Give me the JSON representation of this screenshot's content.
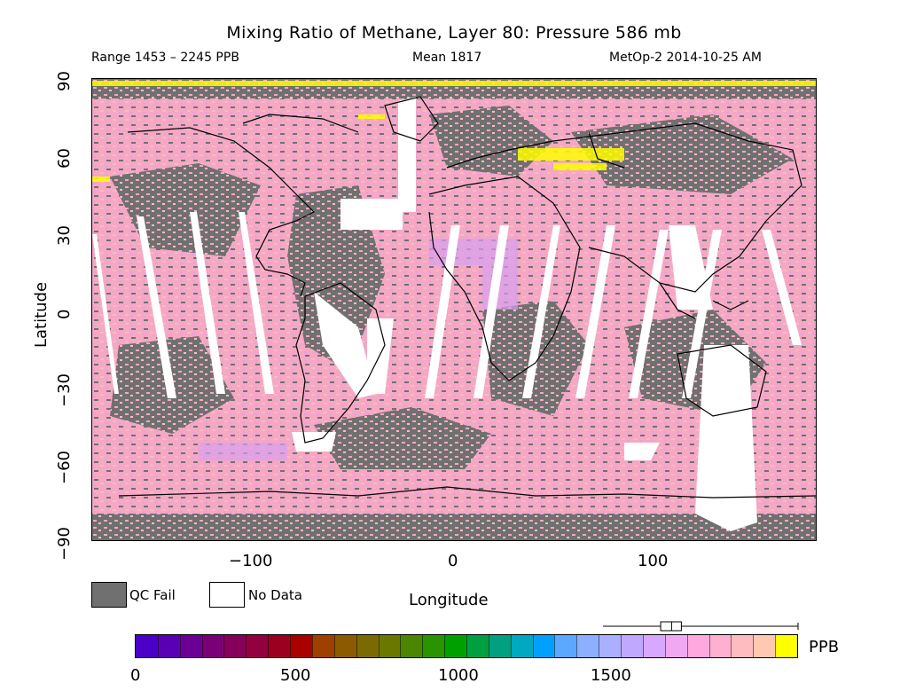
{
  "title": "Mixing Ratio of Methane, Layer 80: Pressure 586 mb",
  "subtitle": {
    "range": "Range 1453 – 2245 PPB",
    "mean": "Mean 1817",
    "source": "MetOp-2 2014-10-25 AM"
  },
  "axes": {
    "xlabel": "Longitude",
    "ylabel": "Latitude",
    "xticks": [
      "−100",
      "0",
      "100"
    ],
    "yticks": [
      "90",
      "60",
      "30",
      "0",
      "−30",
      "−60",
      "−90"
    ],
    "xlim": [
      -180,
      180
    ],
    "ylim": [
      -90,
      90
    ]
  },
  "legend": {
    "qc_fail": "QC Fail",
    "no_data": "No Data",
    "qc_fail_color": "#707070",
    "no_data_color": "#ffffff"
  },
  "colorbar": {
    "unit": "PPB",
    "ticks": [
      "0",
      "500",
      "1000",
      "1500"
    ],
    "range": [
      0,
      2245
    ],
    "colors": [
      "#4b00c8",
      "#5a00b4",
      "#6b0096",
      "#7a0078",
      "#86005a",
      "#920040",
      "#9c0020",
      "#a80000",
      "#a04000",
      "#8c5a00",
      "#7a6a00",
      "#6a7800",
      "#4c8600",
      "#2a9400",
      "#00a000",
      "#00a040",
      "#00a080",
      "#00a8c0",
      "#00a0ff",
      "#5aa8ff",
      "#8cb0ff",
      "#aab0ff",
      "#c0a8ff",
      "#d8a8ff",
      "#f0a8f0",
      "#ffa8e0",
      "#ffb0d0",
      "#ffbcc0",
      "#ffc8b0",
      "#ffff00"
    ],
    "boxplot": {
      "min": 1453,
      "q1": 1780,
      "median": 1817,
      "q3": 1850,
      "max": 2245
    }
  }
}
